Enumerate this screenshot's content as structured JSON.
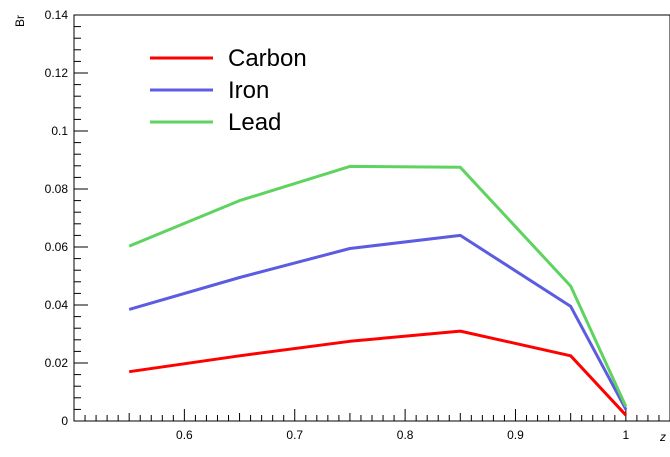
{
  "chart_data": {
    "type": "line",
    "title": "",
    "xlabel": "z",
    "ylabel": "Br",
    "xlim": [
      0.5,
      1.04
    ],
    "ylim": [
      0,
      0.14
    ],
    "x_ticks": [
      0.6,
      0.7,
      0.8,
      0.9,
      1.0
    ],
    "x_tick_labels": [
      "0.6",
      "0.7",
      "0.8",
      "0.9",
      "1"
    ],
    "y_ticks": [
      0,
      0.02,
      0.04,
      0.06,
      0.08,
      0.1,
      0.12,
      0.14
    ],
    "y_tick_labels": [
      "0",
      "0.02",
      "0.04",
      "0.06",
      "0.08",
      "0.1",
      "0.12",
      "0.14"
    ],
    "grid": false,
    "legend_position": "top-left",
    "x": [
      0.55,
      0.65,
      0.75,
      0.85,
      0.95,
      1.0
    ],
    "series": [
      {
        "name": "Carbon",
        "color": "#ff0000",
        "values": [
          0.017,
          0.0225,
          0.0275,
          0.031,
          0.0225,
          0.002
        ]
      },
      {
        "name": "Iron",
        "color": "#5c5ce0",
        "values": [
          0.0385,
          0.0495,
          0.0595,
          0.064,
          0.0395,
          0.004
        ]
      },
      {
        "name": "Lead",
        "color": "#5fd35f",
        "values": [
          0.0603,
          0.076,
          0.0878,
          0.0875,
          0.0465,
          0.005
        ]
      }
    ]
  }
}
